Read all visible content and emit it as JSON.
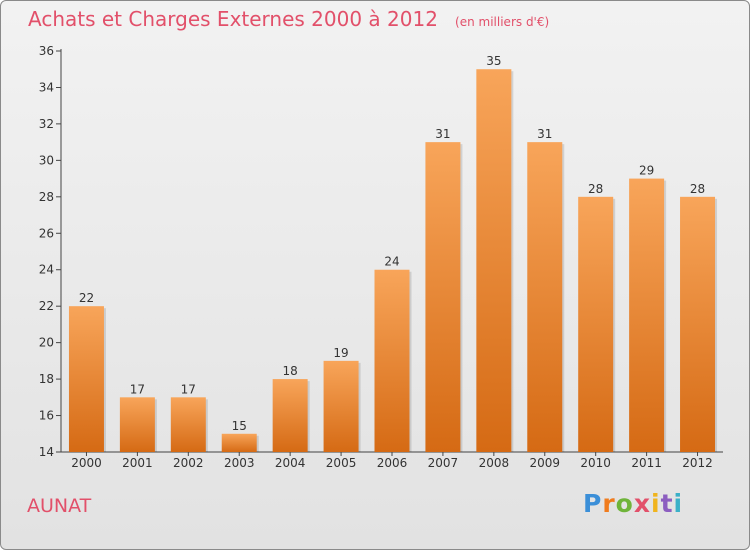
{
  "header": {
    "title": "Achats et Charges Externes 2000 à 2012",
    "unit": "(en milliers d'€)"
  },
  "commune": "AUNAT",
  "logo": {
    "text": "Proxiti",
    "colors": [
      "#3b8fd8",
      "#f07c1e",
      "#6fb43a",
      "#e2506a",
      "#f0b41e",
      "#8c5ec0",
      "#3bb0c8"
    ]
  },
  "chart_data": {
    "type": "bar",
    "categories": [
      "2000",
      "2001",
      "2002",
      "2003",
      "2004",
      "2005",
      "2006",
      "2007",
      "2008",
      "2009",
      "2010",
      "2011",
      "2012"
    ],
    "values": [
      22,
      17,
      17,
      15,
      18,
      19,
      24,
      31,
      35,
      31,
      28,
      29,
      28
    ],
    "ylim": [
      14,
      36
    ],
    "yticks": [
      14,
      16,
      18,
      20,
      22,
      24,
      26,
      28,
      30,
      32,
      34,
      36
    ],
    "grid": false,
    "bar_color_top": "#f8a55a",
    "bar_color_bottom": "#d56a14",
    "title_color": "#e2506a"
  }
}
